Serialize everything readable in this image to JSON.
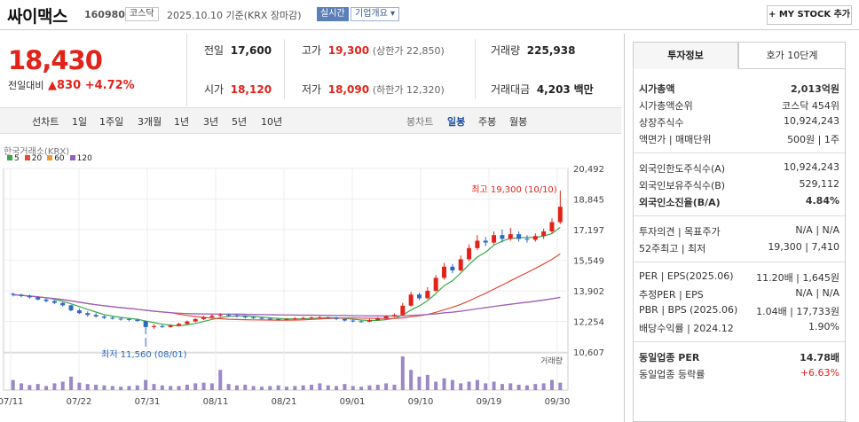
{
  "header": {
    "name": "싸이맥스",
    "code": "160980",
    "market": "코스닥",
    "date": "2025.10.10",
    "basis": "기준(KRX 장마감)",
    "live": "실시간",
    "corp_info": "기업개요",
    "mystock": "MY STOCK 추가"
  },
  "price": {
    "current": "18,430",
    "change_label": "전일대비",
    "change": "830",
    "change_pct": "+4.72%"
  },
  "quote": {
    "prev_label": "전일",
    "prev": "17,600",
    "high_label": "고가",
    "high": "19,300",
    "upper_limit": "(상한가 22,850)",
    "volume_label": "거래량",
    "volume": "225,938",
    "open_label": "시가",
    "open": "18,120",
    "low_label": "저가",
    "low": "18,090",
    "lower_limit": "(하한가 12,320)",
    "amount_label": "거래대금",
    "amount": "4,203",
    "amount_unit": "백만"
  },
  "periods": {
    "items": [
      "선차트",
      "1일",
      "1주일",
      "3개월",
      "1년",
      "3년",
      "5년",
      "10년"
    ],
    "candle_label": "봉차트",
    "candles": [
      "일봉",
      "주봉",
      "월봉"
    ],
    "active": "일봉"
  },
  "chart_data": {
    "type": "candlestick",
    "source": "한국거래소(KRX)",
    "ma_legend": [
      {
        "name": "5",
        "color": "#3aa84a"
      },
      {
        "name": "20",
        "color": "#e24b3b"
      },
      {
        "name": "60",
        "color": "#f09a35"
      },
      {
        "name": "120",
        "color": "#9460c8"
      }
    ],
    "y_ticks": [
      "20,492",
      "18,845",
      "17,197",
      "15,549",
      "13,902",
      "12,254",
      "10,607"
    ],
    "ylim": [
      10607,
      20492
    ],
    "x_ticks": [
      "07/11",
      "07/22",
      "07/31",
      "08/11",
      "08/21",
      "09/01",
      "09/10",
      "09/19",
      "09/30"
    ],
    "annot_high": "최고 19,300 (10/10)",
    "annot_low": "최저 11,560 (08/01)",
    "volume_label": "거래량",
    "candles": [
      [
        13740,
        13690,
        13800,
        13600
      ],
      [
        13690,
        13620,
        13750,
        13550
      ],
      [
        13620,
        13550,
        13700,
        13480
      ],
      [
        13550,
        13430,
        13600,
        13380
      ],
      [
        13430,
        13350,
        13500,
        13280
      ],
      [
        13350,
        13250,
        13400,
        13180
      ],
      [
        13250,
        13120,
        13300,
        13050
      ],
      [
        13120,
        12850,
        13150,
        12800
      ],
      [
        12850,
        12700,
        12950,
        12650
      ],
      [
        12700,
        12600,
        12800,
        12500
      ],
      [
        12600,
        12520,
        12700,
        12450
      ],
      [
        12520,
        12450,
        12580,
        12380
      ],
      [
        12450,
        12400,
        12520,
        12350
      ],
      [
        12400,
        12380,
        12460,
        12300
      ],
      [
        12380,
        12340,
        12420,
        12250
      ],
      [
        12340,
        12280,
        12400,
        12220
      ],
      [
        12280,
        11950,
        12300,
        11560
      ],
      [
        11950,
        12000,
        12100,
        11850
      ],
      [
        12000,
        11950,
        12080,
        11900
      ],
      [
        11950,
        12030,
        12100,
        11920
      ],
      [
        12030,
        12120,
        12180,
        12000
      ],
      [
        12120,
        12250,
        12300,
        12080
      ],
      [
        12250,
        12380,
        12420,
        12200
      ],
      [
        12380,
        12480,
        12560,
        12330
      ],
      [
        12480,
        12560,
        12650,
        12440
      ],
      [
        12560,
        12600,
        12700,
        12500
      ],
      [
        12600,
        12580,
        12680,
        12520
      ],
      [
        12580,
        12520,
        12640,
        12460
      ],
      [
        12520,
        12480,
        12580,
        12400
      ],
      [
        12480,
        12440,
        12520,
        12380
      ],
      [
        12440,
        12400,
        12500,
        12350
      ],
      [
        12400,
        12380,
        12460,
        12320
      ],
      [
        12380,
        12350,
        12420,
        12300
      ],
      [
        12350,
        12380,
        12440,
        12300
      ],
      [
        12380,
        12420,
        12480,
        12340
      ],
      [
        12420,
        12440,
        12500,
        12380
      ],
      [
        12440,
        12460,
        12520,
        12400
      ],
      [
        12460,
        12470,
        12540,
        12420
      ],
      [
        12470,
        12450,
        12520,
        12400
      ],
      [
        12450,
        12380,
        12500,
        12320
      ],
      [
        12380,
        12300,
        12420,
        12250
      ],
      [
        12300,
        12260,
        12360,
        12200
      ],
      [
        12260,
        12240,
        12300,
        12180
      ],
      [
        12240,
        12320,
        12380,
        12200
      ],
      [
        12320,
        12420,
        12480,
        12300
      ],
      [
        12420,
        12520,
        12580,
        12380
      ],
      [
        12520,
        12600,
        12680,
        12480
      ],
      [
        12600,
        13100,
        13250,
        12580
      ],
      [
        13100,
        13700,
        13850,
        13050
      ],
      [
        13700,
        13500,
        13800,
        13400
      ],
      [
        13500,
        13900,
        14100,
        13450
      ],
      [
        13900,
        14600,
        14750,
        13850
      ],
      [
        14600,
        15200,
        15400,
        14500
      ],
      [
        15200,
        15000,
        15350,
        14850
      ],
      [
        15000,
        15600,
        15800,
        14950
      ],
      [
        15600,
        16200,
        16400,
        15500
      ],
      [
        16200,
        16600,
        16900,
        16100
      ],
      [
        16600,
        16500,
        16800,
        16300
      ],
      [
        16500,
        16900,
        17100,
        16400
      ],
      [
        16900,
        16700,
        17200,
        16500
      ],
      [
        16700,
        16950,
        17300,
        16600
      ],
      [
        16950,
        16700,
        17100,
        16550
      ],
      [
        16700,
        16650,
        16900,
        16500
      ],
      [
        16650,
        16850,
        17000,
        16550
      ],
      [
        16850,
        17100,
        17250,
        16700
      ],
      [
        17100,
        17600,
        17800,
        17000
      ],
      [
        17600,
        18430,
        19300,
        17500
      ]
    ],
    "volumes": [
      30,
      20,
      15,
      18,
      12,
      20,
      25,
      40,
      22,
      18,
      16,
      14,
      12,
      10,
      12,
      14,
      30,
      18,
      14,
      12,
      12,
      16,
      20,
      22,
      20,
      60,
      18,
      14,
      16,
      12,
      10,
      12,
      14,
      10,
      12,
      14,
      16,
      20,
      14,
      12,
      18,
      12,
      10,
      14,
      16,
      20,
      16,
      100,
      60,
      40,
      45,
      25,
      35,
      30,
      20,
      25,
      30,
      20,
      25,
      18,
      20,
      16,
      14,
      18,
      20,
      30,
      22
    ]
  },
  "right": {
    "tabs": [
      "투자정보",
      "호가 10단계"
    ],
    "rows": [
      {
        "l": "시가총액",
        "v": "2,013억원",
        "bold": true
      },
      {
        "l": "시가총액순위",
        "v": "코스닥 454위"
      },
      {
        "l": "상장주식수",
        "v": "10,924,243"
      },
      {
        "l": "액면가 | 매매단위",
        "v": "500원 | 1주"
      },
      {
        "l": "외국인한도주식수(A)",
        "v": "10,924,243"
      },
      {
        "l": "외국인보유주식수(B)",
        "v": "529,112"
      },
      {
        "l": "외국인소진율(B/A)",
        "v": "4.84%",
        "bold": true
      },
      {
        "l": "투자의견 | 목표주가",
        "v": "N/A | N/A"
      },
      {
        "l": "52주최고 | 최저",
        "v": "19,300 | 7,410"
      },
      {
        "l": "PER | EPS(2025.06)",
        "v": "11.20배 | 1,645원"
      },
      {
        "l": "추정PER | EPS",
        "v": "N/A | N/A"
      },
      {
        "l": "PBR | BPS (2025.06)",
        "v": "1.04배 | 17,733원"
      },
      {
        "l": "배당수익률 | 2024.12",
        "v": "1.90%"
      },
      {
        "l": "동일업종 PER",
        "v": "14.78배",
        "bold": true
      },
      {
        "l": "동일업종 등락률",
        "v": "+6.63%",
        "red": true
      }
    ]
  }
}
